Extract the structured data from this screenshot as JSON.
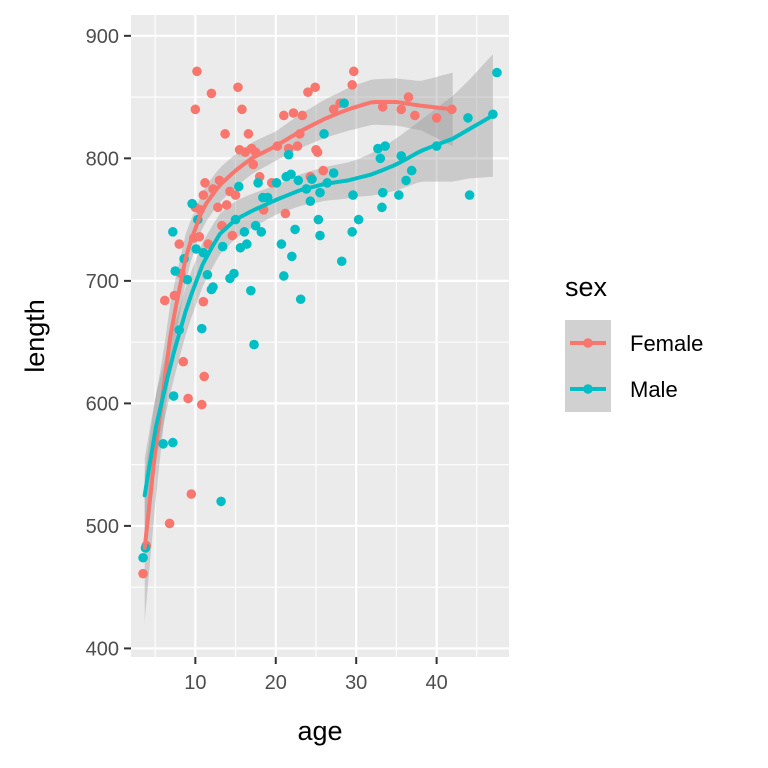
{
  "chart_data": {
    "type": "scatter",
    "title": "",
    "xlabel": "age",
    "ylabel": "length",
    "xlim": [
      2,
      49
    ],
    "ylim": [
      393,
      917
    ],
    "x_ticks": [
      10,
      20,
      30,
      40
    ],
    "y_ticks": [
      400,
      500,
      600,
      700,
      800,
      900
    ],
    "grid": true,
    "legend": {
      "title": "sex",
      "position": "right"
    },
    "series": [
      {
        "name": "Female",
        "color": "#F8766D",
        "smooth": [
          [
            3.7,
            482
          ],
          [
            5,
            560
          ],
          [
            7,
            660
          ],
          [
            9,
            725
          ],
          [
            11,
            760
          ],
          [
            13,
            778
          ],
          [
            15,
            790
          ],
          [
            17,
            800
          ],
          [
            20,
            810
          ],
          [
            23,
            822
          ],
          [
            26,
            832
          ],
          [
            29,
            840
          ],
          [
            32,
            846
          ],
          [
            35,
            846
          ],
          [
            38,
            843
          ],
          [
            42,
            840
          ]
        ],
        "band_half_width": [
          [
            3.7,
            60
          ],
          [
            6,
            30
          ],
          [
            10,
            15
          ],
          [
            20,
            12
          ],
          [
            30,
            18
          ],
          [
            38,
            20
          ],
          [
            42,
            30
          ]
        ],
        "points": [
          [
            3.5,
            461
          ],
          [
            3.9,
            484
          ],
          [
            6.2,
            684
          ],
          [
            6.8,
            502
          ],
          [
            7.4,
            688
          ],
          [
            8,
            730
          ],
          [
            8.2,
            706
          ],
          [
            8.5,
            634
          ],
          [
            9.1,
            604
          ],
          [
            9.5,
            526
          ],
          [
            9.8,
            735
          ],
          [
            10,
            760
          ],
          [
            10,
            840
          ],
          [
            10.2,
            871
          ],
          [
            10.5,
            736
          ],
          [
            10.6,
            758
          ],
          [
            10.8,
            599
          ],
          [
            11,
            770
          ],
          [
            11,
            683
          ],
          [
            11.1,
            622
          ],
          [
            11.2,
            780
          ],
          [
            11.6,
            730
          ],
          [
            12,
            853
          ],
          [
            12.2,
            775
          ],
          [
            12.8,
            760
          ],
          [
            13,
            782
          ],
          [
            13.3,
            745
          ],
          [
            13.7,
            820
          ],
          [
            13.9,
            762
          ],
          [
            14.3,
            773
          ],
          [
            14.6,
            737
          ],
          [
            15,
            770
          ],
          [
            15.3,
            858
          ],
          [
            15.5,
            807
          ],
          [
            15.8,
            840
          ],
          [
            16.2,
            805
          ],
          [
            16.6,
            820
          ],
          [
            17,
            808
          ],
          [
            17.2,
            795
          ],
          [
            17.5,
            805
          ],
          [
            18,
            785
          ],
          [
            18.5,
            758
          ],
          [
            19.5,
            780
          ],
          [
            20.2,
            810
          ],
          [
            21,
            835
          ],
          [
            21.2,
            755
          ],
          [
            21.6,
            808
          ],
          [
            22.2,
            837
          ],
          [
            22.7,
            810
          ],
          [
            23,
            820
          ],
          [
            23.3,
            835
          ],
          [
            24,
            854
          ],
          [
            24.3,
            785
          ],
          [
            24.9,
            858
          ],
          [
            25,
            807
          ],
          [
            25.2,
            805
          ],
          [
            25.9,
            790
          ],
          [
            27.2,
            840
          ],
          [
            28,
            845
          ],
          [
            29.5,
            860
          ],
          [
            29.7,
            871
          ],
          [
            33.3,
            842
          ],
          [
            35.6,
            840
          ],
          [
            36.5,
            850
          ],
          [
            37.3,
            835
          ],
          [
            40,
            833
          ],
          [
            41.9,
            840
          ]
        ]
      },
      {
        "name": "Male",
        "color": "#00BFC4",
        "smooth": [
          [
            3.7,
            525
          ],
          [
            5,
            578
          ],
          [
            7,
            634
          ],
          [
            9,
            680
          ],
          [
            11,
            715
          ],
          [
            13,
            738
          ],
          [
            15,
            750
          ],
          [
            17,
            757
          ],
          [
            20,
            766
          ],
          [
            23,
            774
          ],
          [
            26,
            779
          ],
          [
            29,
            782
          ],
          [
            32,
            787
          ],
          [
            35,
            795
          ],
          [
            38,
            806
          ],
          [
            42,
            816
          ],
          [
            47,
            835
          ]
        ],
        "band_half_width": [
          [
            3.7,
            30
          ],
          [
            8,
            20
          ],
          [
            20,
            12
          ],
          [
            30,
            15
          ],
          [
            38,
            25
          ],
          [
            44,
            40
          ],
          [
            47,
            50
          ]
        ],
        "points": [
          [
            3.5,
            474
          ],
          [
            3.8,
            482
          ],
          [
            6,
            567
          ],
          [
            7.2,
            740
          ],
          [
            7.2,
            568
          ],
          [
            7.3,
            606
          ],
          [
            7.5,
            708
          ],
          [
            8,
            660
          ],
          [
            8.6,
            718
          ],
          [
            9,
            701
          ],
          [
            9.6,
            763
          ],
          [
            10.1,
            726
          ],
          [
            10.3,
            750
          ],
          [
            10.8,
            661
          ],
          [
            11,
            723
          ],
          [
            11.5,
            705
          ],
          [
            12,
            693
          ],
          [
            12.2,
            695
          ],
          [
            13.2,
            520
          ],
          [
            13.4,
            728
          ],
          [
            14.3,
            702
          ],
          [
            14.8,
            706
          ],
          [
            15,
            750
          ],
          [
            15.4,
            777
          ],
          [
            15.6,
            727
          ],
          [
            16.1,
            740
          ],
          [
            16.4,
            730
          ],
          [
            16.9,
            692
          ],
          [
            17.3,
            648
          ],
          [
            17.5,
            745
          ],
          [
            17.8,
            780
          ],
          [
            18.2,
            740
          ],
          [
            18.4,
            768
          ],
          [
            19,
            768
          ],
          [
            20.1,
            780
          ],
          [
            20.7,
            730
          ],
          [
            21,
            704
          ],
          [
            21.3,
            785
          ],
          [
            21.6,
            803
          ],
          [
            21.9,
            787
          ],
          [
            22,
            720
          ],
          [
            22.4,
            742
          ],
          [
            22.8,
            782
          ],
          [
            23.1,
            685
          ],
          [
            23.8,
            775
          ],
          [
            24.3,
            765
          ],
          [
            24.5,
            783
          ],
          [
            25.3,
            750
          ],
          [
            25.5,
            737
          ],
          [
            25.5,
            772
          ],
          [
            26,
            820
          ],
          [
            26.4,
            780
          ],
          [
            27.2,
            788
          ],
          [
            28.2,
            716
          ],
          [
            28.5,
            845
          ],
          [
            29.5,
            740
          ],
          [
            29.6,
            770
          ],
          [
            30.3,
            750
          ],
          [
            32.7,
            808
          ],
          [
            33,
            800
          ],
          [
            33.2,
            760
          ],
          [
            33.3,
            772
          ],
          [
            33.6,
            810
          ],
          [
            35.3,
            770
          ],
          [
            35.6,
            802
          ],
          [
            36.2,
            782
          ],
          [
            36.9,
            790
          ],
          [
            40,
            810
          ],
          [
            43.9,
            833
          ],
          [
            44.1,
            770
          ],
          [
            47,
            836
          ],
          [
            47.5,
            870
          ]
        ]
      }
    ]
  }
}
